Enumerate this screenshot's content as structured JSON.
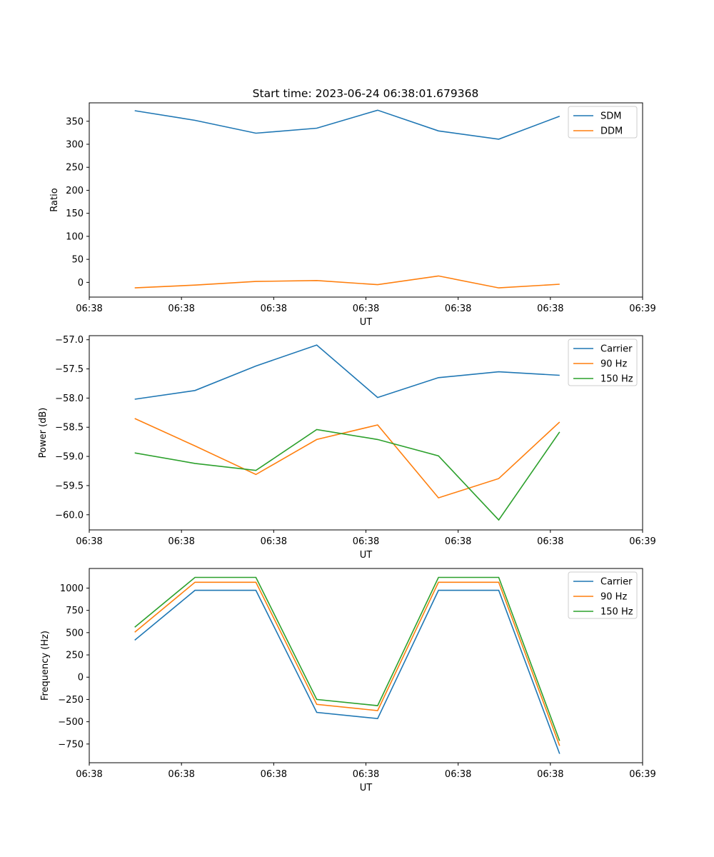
{
  "figure": {
    "title": "Start time: 2023-06-24 06:38:01.679368"
  },
  "chart_data": [
    {
      "type": "line",
      "title": "Start time: 2023-06-24 06:38:01.679368",
      "xlabel": "UT",
      "ylabel": "Ratio",
      "xlim": [
        0,
        9
      ],
      "ylim": [
        -32,
        390
      ],
      "x_ticks": [
        0.0,
        1.5,
        3.0,
        4.5,
        6.0,
        7.5,
        9.0
      ],
      "x_tick_labels": [
        "06:38",
        "06:38",
        "06:38",
        "06:38",
        "06:38",
        "06:38",
        "06:39"
      ],
      "y_ticks": [
        0,
        50,
        100,
        150,
        200,
        250,
        300,
        350
      ],
      "y_tick_labels": [
        "0",
        "50",
        "100",
        "150",
        "200",
        "250",
        "300",
        "350"
      ],
      "legend": "top-right",
      "grid": false,
      "x": [
        0.74,
        1.72,
        2.71,
        3.7,
        4.69,
        5.68,
        6.66,
        7.65
      ],
      "series": [
        {
          "name": "SDM",
          "color": "#1f77b4",
          "values": [
            373,
            352,
            324,
            335,
            374,
            329,
            311,
            361
          ]
        },
        {
          "name": "DDM",
          "color": "#ff7f0e",
          "values": [
            -12,
            -6,
            2,
            4,
            -5,
            14,
            -12,
            -4
          ]
        }
      ]
    },
    {
      "type": "line",
      "xlabel": "UT",
      "ylabel": "Power (dB)",
      "xlim": [
        0,
        9
      ],
      "ylim": [
        -60.26,
        -56.93
      ],
      "x_ticks": [
        0.0,
        1.5,
        3.0,
        4.5,
        6.0,
        7.5,
        9.0
      ],
      "x_tick_labels": [
        "06:38",
        "06:38",
        "06:38",
        "06:38",
        "06:38",
        "06:38",
        "06:39"
      ],
      "y_ticks": [
        -60.0,
        -59.5,
        -59.0,
        -58.5,
        -58.0,
        -57.5,
        -57.0
      ],
      "y_tick_labels": [
        "−60.0",
        "−59.5",
        "−59.0",
        "−58.5",
        "−58.0",
        "−57.5",
        "−57.0"
      ],
      "legend": "top-right",
      "grid": false,
      "x": [
        0.74,
        1.72,
        2.71,
        3.7,
        4.69,
        5.68,
        6.66,
        7.65
      ],
      "series": [
        {
          "name": "Carrier",
          "color": "#1f77b4",
          "values": [
            -58.02,
            -57.87,
            -57.45,
            -57.09,
            -57.99,
            -57.65,
            -57.55,
            -57.61
          ]
        },
        {
          "name": "90 Hz",
          "color": "#ff7f0e",
          "values": [
            -58.35,
            -58.82,
            -59.31,
            -58.71,
            -58.46,
            -59.71,
            -59.38,
            -58.41
          ]
        },
        {
          "name": "150 Hz",
          "color": "#2ca02c",
          "values": [
            -58.94,
            -59.12,
            -59.24,
            -58.54,
            -58.71,
            -58.99,
            -60.09,
            -58.58
          ]
        }
      ]
    },
    {
      "type": "line",
      "xlabel": "UT",
      "ylabel": "Frequency (Hz)",
      "xlim": [
        0,
        9
      ],
      "ylim": [
        -960,
        1220
      ],
      "x_ticks": [
        0.0,
        1.5,
        3.0,
        4.5,
        6.0,
        7.5,
        9.0
      ],
      "x_tick_labels": [
        "06:38",
        "06:38",
        "06:38",
        "06:38",
        "06:38",
        "06:38",
        "06:39"
      ],
      "y_ticks": [
        -750,
        -500,
        -250,
        0,
        250,
        500,
        750,
        1000
      ],
      "y_tick_labels": [
        "−750",
        "−500",
        "−250",
        "0",
        "250",
        "500",
        "750",
        "1000"
      ],
      "legend": "top-right",
      "grid": false,
      "x": [
        0.74,
        1.72,
        2.71,
        3.7,
        4.69,
        5.68,
        6.66,
        7.65
      ],
      "series": [
        {
          "name": "Carrier",
          "color": "#1f77b4",
          "values": [
            415,
            975,
            975,
            -395,
            -465,
            975,
            975,
            -860
          ]
        },
        {
          "name": "90 Hz",
          "color": "#ff7f0e",
          "values": [
            505,
            1065,
            1065,
            -305,
            -375,
            1065,
            1065,
            -770
          ]
        },
        {
          "name": "150 Hz",
          "color": "#2ca02c",
          "values": [
            560,
            1120,
            1120,
            -250,
            -320,
            1120,
            1120,
            -715
          ]
        }
      ]
    }
  ]
}
